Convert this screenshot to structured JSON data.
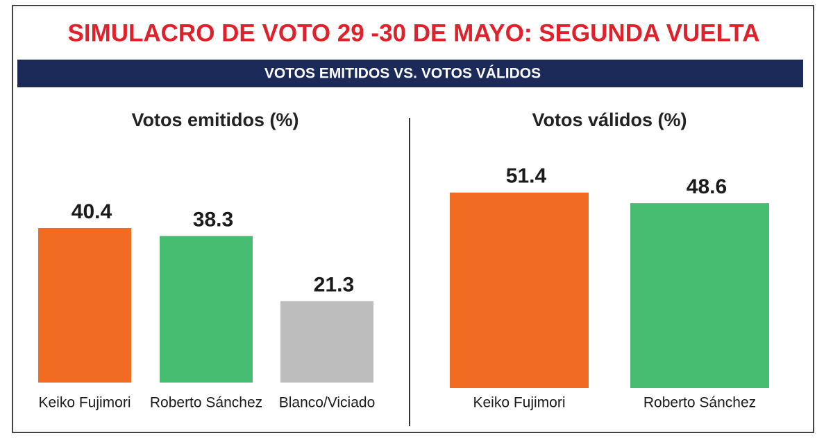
{
  "header": {
    "title": "SIMULACRO DE VOTO 29 -30 DE MAYO: SEGUNDA VUELTA",
    "subtitle": "VOTOS EMITIDOS VS. VOTOS VÁLIDOS"
  },
  "chart_data": [
    {
      "type": "bar",
      "title": "Votos emitidos (%)",
      "categories": [
        "Keiko Fujimori",
        "Roberto Sánchez",
        "Blanco/Viciado"
      ],
      "values": [
        40.4,
        38.3,
        21.3
      ],
      "colors": [
        "#f26b22",
        "#47bd72",
        "#bdbdbd"
      ]
    },
    {
      "type": "bar",
      "title": "Votos válidos (%)",
      "categories": [
        "Keiko Fujimori",
        "Roberto Sánchez"
      ],
      "values": [
        51.4,
        48.6
      ],
      "colors": [
        "#f26b22",
        "#47bd72"
      ]
    }
  ]
}
